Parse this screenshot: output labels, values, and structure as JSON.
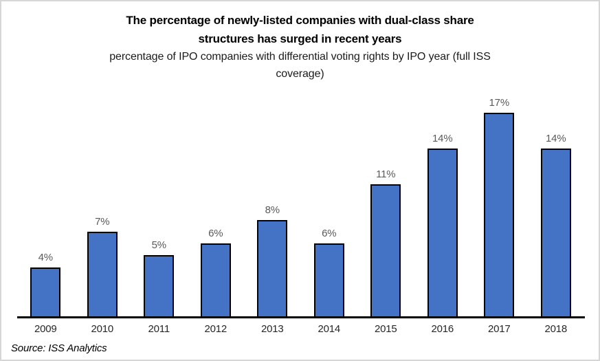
{
  "frame": {
    "background_color": "#ffffff",
    "border_color": "#d6d6d6"
  },
  "chart_data": {
    "type": "bar",
    "title": "The percentage of newly-listed companies with dual-class share structures has surged in recent years",
    "title_lines": [
      "The percentage of newly-listed companies with dual-class share",
      "structures has surged in recent years"
    ],
    "subtitle": "percentage of IPO companies with differential voting rights by IPO year (full ISS coverage)",
    "subtitle_lines": [
      "percentage of IPO companies with differential voting rights by IPO year (full ISS",
      "coverage)"
    ],
    "categories": [
      "2009",
      "2010",
      "2011",
      "2012",
      "2013",
      "2014",
      "2015",
      "2016",
      "2017",
      "2018"
    ],
    "values": [
      4,
      7,
      5,
      6,
      8,
      6,
      11,
      14,
      17,
      14
    ],
    "data_labels": [
      "4%",
      "7%",
      "5%",
      "6%",
      "8%",
      "6%",
      "11%",
      "14%",
      "17%",
      "14%"
    ],
    "unit": "%",
    "xlabel": "",
    "ylabel": "",
    "ylim": [
      0,
      18
    ],
    "grid": false,
    "legend": "none",
    "y_axis_visible": false,
    "bar_fill_color": "#4472C4",
    "bar_border_color": "#000000",
    "axis_line_color": "#000000",
    "data_label_color": "#595959",
    "tick_label_color": "#262626",
    "source": "Source: ISS Analytics"
  }
}
